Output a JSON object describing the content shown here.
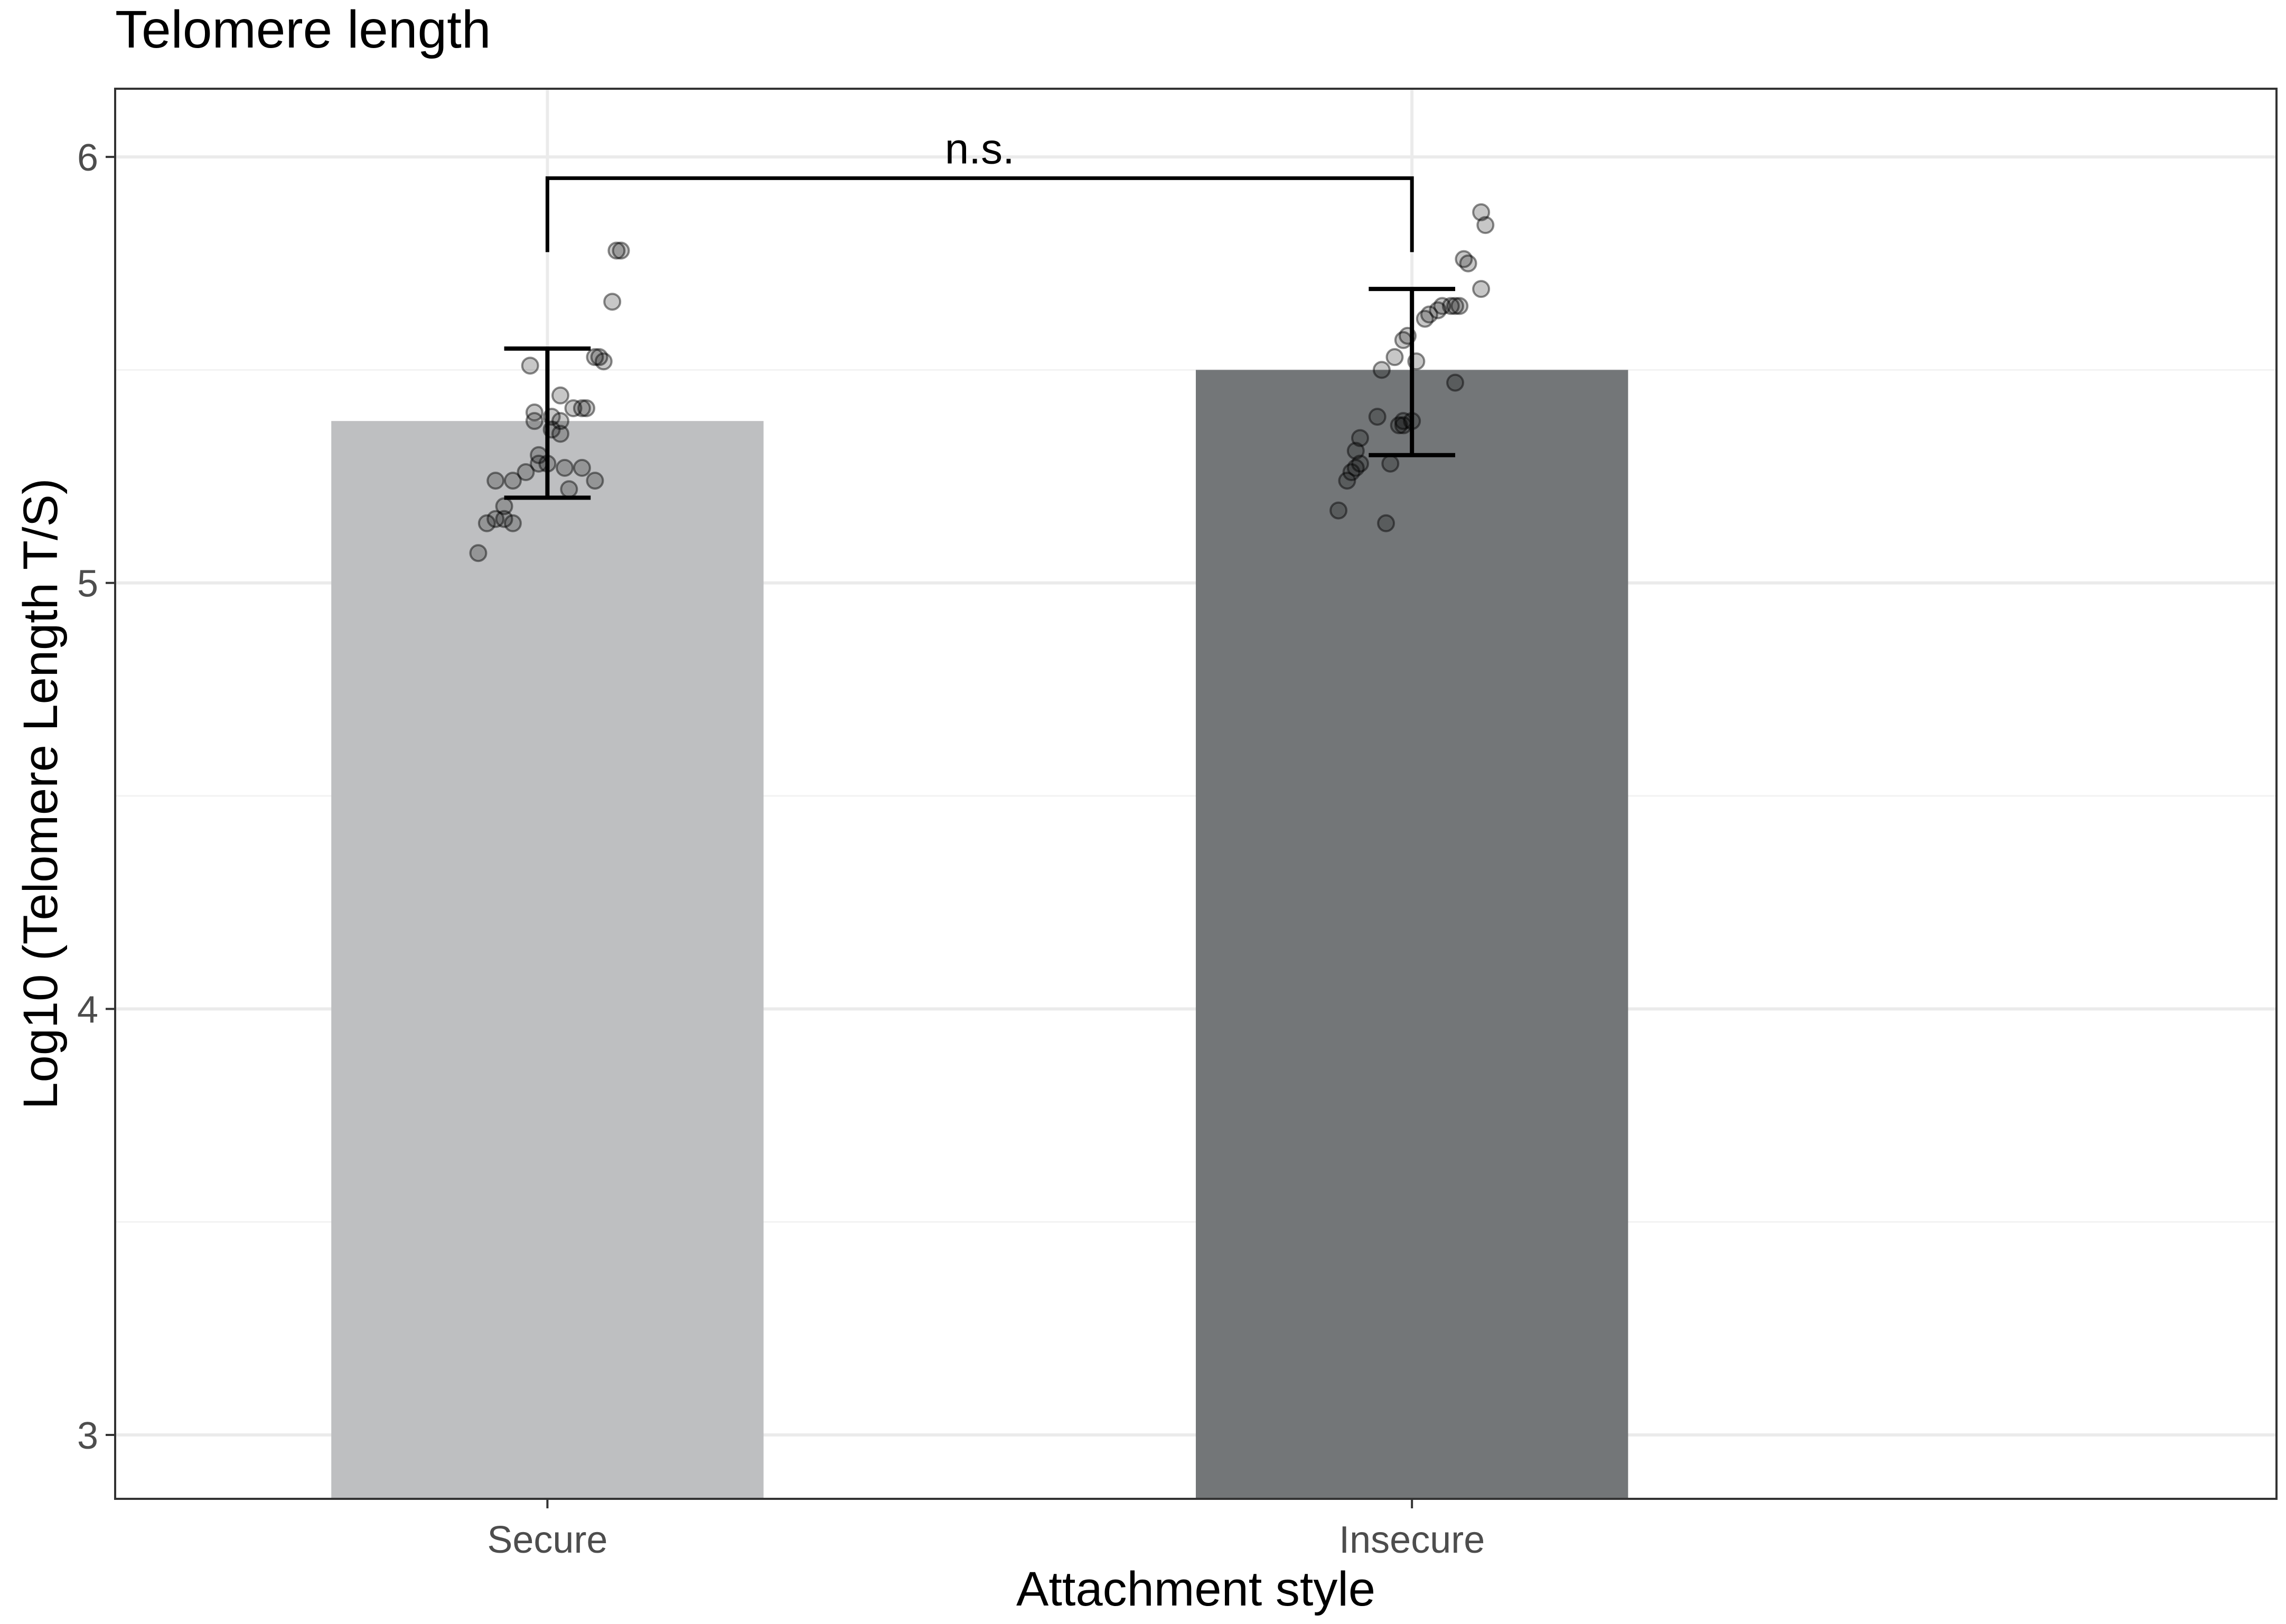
{
  "chart_data": {
    "type": "bar",
    "title": "Telomere length",
    "xlabel": "Attachment style",
    "ylabel": "Log10  (Telomere Length T/S)",
    "categories": [
      "Secure",
      "Insecure"
    ],
    "values": [
      5.38,
      5.5
    ],
    "error_bars": [
      {
        "low": 5.2,
        "high": 5.55
      },
      {
        "low": 5.3,
        "high": 5.69
      }
    ],
    "bar_colors": [
      "#bebfc1",
      "#737678"
    ],
    "ylim": [
      2.85,
      6.16
    ],
    "yticks": [
      "3",
      "4",
      "5",
      "6"
    ],
    "grid": true,
    "annotation": {
      "text": "n.s.",
      "from": "Secure",
      "to": "Insecure",
      "y": 5.95
    },
    "points": [
      {
        "category": "Secure",
        "values": [
          5.07,
          5.14,
          5.14,
          5.15,
          5.15,
          5.18,
          5.22,
          5.24,
          5.24,
          5.24,
          5.26,
          5.27,
          5.27,
          5.28,
          5.28,
          5.3,
          5.35,
          5.36,
          5.38,
          5.38,
          5.39,
          5.4,
          5.41,
          5.41,
          5.41,
          5.44,
          5.51,
          5.52,
          5.53,
          5.53,
          5.66,
          5.78,
          5.78
        ],
        "offsets": [
          -0.08,
          -0.07,
          -0.04,
          -0.06,
          -0.05,
          -0.05,
          0.025,
          -0.06,
          0.055,
          -0.04,
          -0.025,
          0.04,
          0.02,
          0.0,
          -0.01,
          -0.01,
          0.015,
          0.005,
          -0.015,
          0.015,
          0.005,
          -0.015,
          0.04,
          0.03,
          0.045,
          0.015,
          -0.02,
          0.065,
          0.055,
          0.06,
          0.075,
          0.085,
          0.08
        ]
      },
      {
        "category": "Insecure",
        "values": [
          5.14,
          5.17,
          5.24,
          5.26,
          5.27,
          5.28,
          5.28,
          5.31,
          5.34,
          5.37,
          5.37,
          5.38,
          5.38,
          5.39,
          5.47,
          5.5,
          5.52,
          5.53,
          5.57,
          5.58,
          5.62,
          5.63,
          5.64,
          5.65,
          5.65,
          5.65,
          5.65,
          5.69,
          5.75,
          5.76,
          5.84,
          5.87
        ],
        "offsets": [
          -0.03,
          -0.085,
          -0.075,
          -0.07,
          -0.065,
          -0.06,
          -0.025,
          -0.065,
          -0.06,
          -0.01,
          -0.015,
          0.0,
          -0.01,
          -0.04,
          0.05,
          -0.035,
          0.005,
          -0.02,
          -0.01,
          -0.005,
          0.015,
          0.02,
          0.03,
          0.045,
          0.035,
          0.05,
          0.055,
          0.08,
          0.065,
          0.06,
          0.085,
          0.08
        ]
      }
    ]
  }
}
